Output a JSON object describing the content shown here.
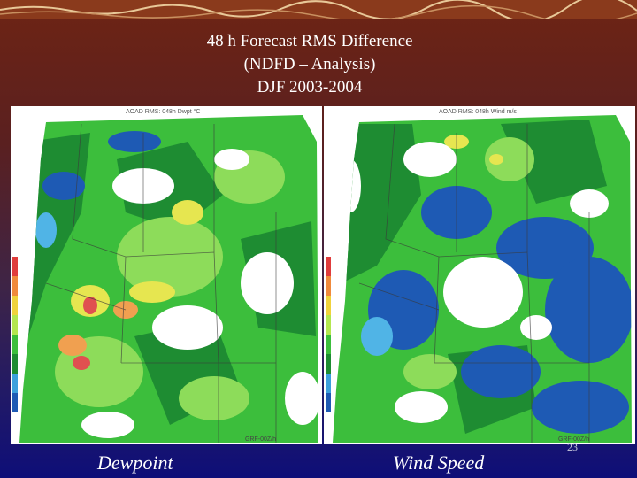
{
  "slide": {
    "title_lines": [
      "48 h Forecast RMS Difference",
      "(NDFD – Analysis)",
      "DJF 2003-2004"
    ],
    "slide_number": "23"
  },
  "maps": [
    {
      "id": "dewpoint",
      "header": "AOAD RMS: 048h Dwpt °C",
      "footer": "GRF-00Z/h",
      "caption": "Dewpoint",
      "colorbar": [
        "#e03c3c",
        "#f08a3c",
        "#f0d23c",
        "#b4e650",
        "#3cbe3c",
        "#1e8c32",
        "#3ca0dc",
        "#1e5ab4"
      ]
    },
    {
      "id": "wind-speed",
      "header": "AOAD RMS: 048h Wind m/s",
      "footer": "GRF-00Z/h",
      "caption": "Wind Speed",
      "colorbar": [
        "#e03c3c",
        "#f08a3c",
        "#f0d23c",
        "#b4e650",
        "#3cbe3c",
        "#1e8c32",
        "#3ca0dc",
        "#1e5ab4"
      ]
    }
  ],
  "colors": {
    "dark_green": "#1e8c32",
    "green": "#3cbe3c",
    "light_green": "#8ddc5a",
    "yellow": "#e6e650",
    "orange": "#f0a050",
    "red": "#e05050",
    "blue": "#1e5ab4",
    "cyan": "#50b4e6"
  }
}
